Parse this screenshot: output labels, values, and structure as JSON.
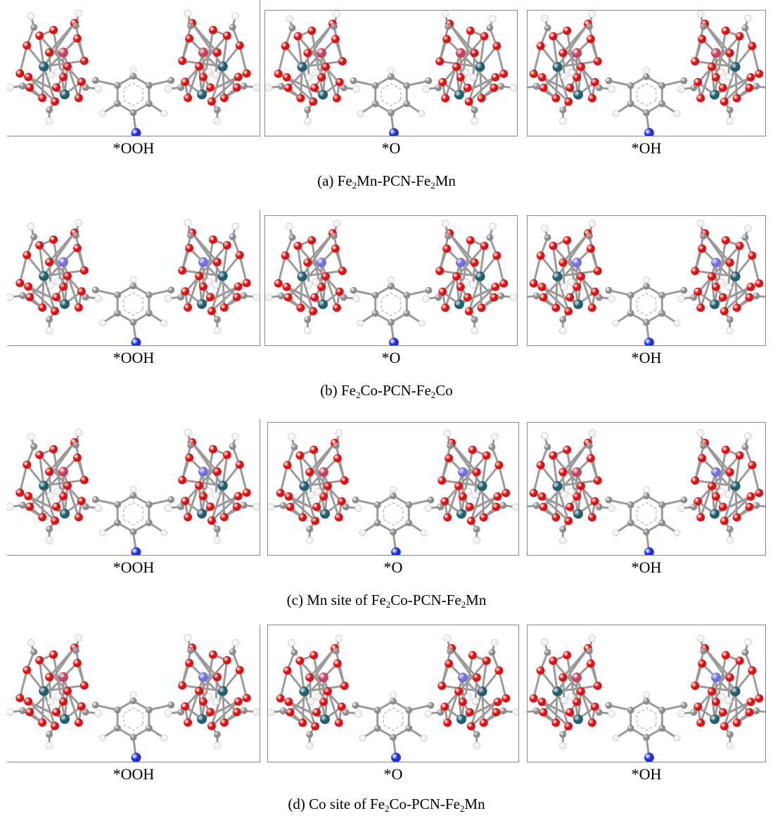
{
  "rows": [
    {
      "caption": {
        "prefix": "(a) ",
        "formula": [
          [
            "Fe",
            ""
          ],
          [
            "2",
            "sub"
          ],
          [
            "Mn-PCN-Fe",
            ""
          ],
          [
            "2",
            "sub"
          ],
          [
            "Mn",
            ""
          ]
        ]
      },
      "labels": [
        "*OOH",
        "*O",
        "*OH"
      ],
      "sites": [
        "Mn",
        "Mn"
      ],
      "variant": 0
    },
    {
      "caption": {
        "prefix": "(b) ",
        "formula": [
          [
            "Fe",
            ""
          ],
          [
            "2",
            "sub"
          ],
          [
            "Co-PCN-Fe",
            ""
          ],
          [
            "2",
            "sub"
          ],
          [
            "Co",
            ""
          ]
        ]
      },
      "labels": [
        "*OOH",
        "*O",
        "*OH"
      ],
      "sites": [
        "Co",
        "Co"
      ],
      "variant": 1
    },
    {
      "caption": {
        "prefix": "(c) Mn site of ",
        "formula": [
          [
            "Fe",
            ""
          ],
          [
            "2",
            "sub"
          ],
          [
            "Co-PCN-Fe",
            ""
          ],
          [
            "2",
            "sub"
          ],
          [
            "Mn",
            ""
          ]
        ]
      },
      "labels": [
        "*OOH",
        "*O",
        "*OH"
      ],
      "sites": [
        "Mn",
        "Co"
      ],
      "variant": 2
    },
    {
      "caption": {
        "prefix": "(d) Co site of ",
        "formula": [
          [
            "Fe",
            ""
          ],
          [
            "2",
            "sub"
          ],
          [
            "Co-PCN-Fe",
            ""
          ],
          [
            "2",
            "sub"
          ],
          [
            "Mn",
            ""
          ]
        ]
      },
      "labels": [
        "*OOH",
        "*O",
        "*OH"
      ],
      "sites": [
        "Mn",
        "Co"
      ],
      "variant": 3
    }
  ],
  "atom_colors": {
    "O": "#e01010",
    "C": "#8c8c8c",
    "H": "#f2f2f2",
    "Fe": "#1f5f6e",
    "Mn": "#c8405a",
    "Co": "#7070e0",
    "N": "#1f2fe0"
  }
}
